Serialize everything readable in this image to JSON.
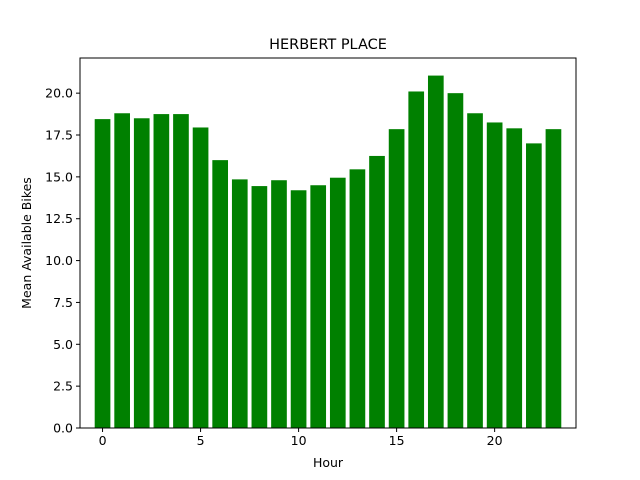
{
  "chart_data": {
    "type": "bar",
    "title": "HERBERT PLACE",
    "xlabel": "Hour",
    "ylabel": "Mean Available Bikes",
    "x": [
      0,
      1,
      2,
      3,
      4,
      5,
      6,
      7,
      8,
      9,
      10,
      11,
      12,
      13,
      14,
      15,
      16,
      17,
      18,
      19,
      20,
      21,
      22,
      23
    ],
    "values": [
      18.45,
      18.8,
      18.5,
      18.75,
      18.75,
      17.95,
      16.0,
      14.85,
      14.45,
      14.8,
      14.2,
      14.5,
      14.95,
      15.45,
      16.25,
      17.85,
      20.1,
      21.05,
      20.0,
      18.8,
      18.25,
      17.9,
      17.0,
      17.85
    ],
    "xlim": [
      -1.15,
      24.15
    ],
    "ylim": [
      0,
      22.1
    ],
    "xticks": [
      0,
      5,
      10,
      15,
      20
    ],
    "yticks": [
      0.0,
      2.5,
      5.0,
      7.5,
      10.0,
      12.5,
      15.0,
      17.5,
      20.0
    ],
    "ytick_labels": [
      "0.0",
      "2.5",
      "5.0",
      "7.5",
      "10.0",
      "12.5",
      "15.0",
      "17.5",
      "20.0"
    ],
    "bar_color": "#008000",
    "grid": false,
    "legend": "none"
  }
}
